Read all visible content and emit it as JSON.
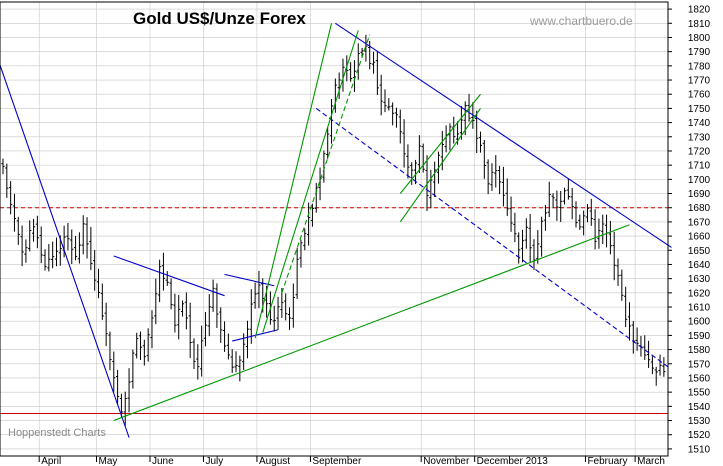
{
  "chart_data": {
    "type": "ohlc",
    "title": "Gold US$/Unze Forex",
    "watermark": "www.chartbuero.de",
    "source": "Hoppenstedt Charts",
    "y_axis": {
      "min": 1505,
      "max": 1825,
      "position": "right",
      "tick_step": 10
    },
    "y_ticks": [
      "1510",
      "1520",
      "1530",
      "1540",
      "1550",
      "1560",
      "1570",
      "1580",
      "1590",
      "1600",
      "1610",
      "1620",
      "1630",
      "1640",
      "1650",
      "1660",
      "1670",
      "1680",
      "1690",
      "1700",
      "1710",
      "1720",
      "1730",
      "1740",
      "1750",
      "1760",
      "1770",
      "1780",
      "1790",
      "1800",
      "1810",
      "1820"
    ],
    "x_ticks": [
      "April",
      "May",
      "June",
      "July",
      "August",
      "September",
      "November",
      "December 2013",
      "February",
      "March"
    ],
    "grid": true,
    "colors": {
      "bars": "#000000",
      "down_trend": "#0000cc",
      "up_trend": "#009900",
      "resistance": "#cc0000",
      "support": "#cc0000",
      "grid": "#c8c8c8"
    },
    "horizontal_lines": [
      {
        "value": 1680,
        "style": "dashed",
        "color": "#cc0000"
      },
      {
        "value": 1535,
        "style": "solid",
        "color": "#cc0000"
      }
    ],
    "anchors": [
      {
        "i": 0,
        "p": 1710
      },
      {
        "i": 2,
        "p": 1680
      },
      {
        "i": 5,
        "p": 1650
      },
      {
        "i": 8,
        "p": 1665
      },
      {
        "i": 11,
        "p": 1640
      },
      {
        "i": 14,
        "p": 1650
      },
      {
        "i": 17,
        "p": 1660
      },
      {
        "i": 19,
        "p": 1645
      },
      {
        "i": 21,
        "p": 1670
      },
      {
        "i": 24,
        "p": 1630
      },
      {
        "i": 27,
        "p": 1590
      },
      {
        "i": 29,
        "p": 1560
      },
      {
        "i": 31,
        "p": 1535
      },
      {
        "i": 33,
        "p": 1560
      },
      {
        "i": 35,
        "p": 1590
      },
      {
        "i": 37,
        "p": 1575
      },
      {
        "i": 39,
        "p": 1600
      },
      {
        "i": 41,
        "p": 1635
      },
      {
        "i": 43,
        "p": 1630
      },
      {
        "i": 45,
        "p": 1595
      },
      {
        "i": 47,
        "p": 1615
      },
      {
        "i": 49,
        "p": 1585
      },
      {
        "i": 51,
        "p": 1565
      },
      {
        "i": 53,
        "p": 1600
      },
      {
        "i": 55,
        "p": 1625
      },
      {
        "i": 57,
        "p": 1590
      },
      {
        "i": 59,
        "p": 1575
      },
      {
        "i": 61,
        "p": 1565
      },
      {
        "i": 63,
        "p": 1580
      },
      {
        "i": 65,
        "p": 1610
      },
      {
        "i": 67,
        "p": 1625
      },
      {
        "i": 69,
        "p": 1610
      },
      {
        "i": 71,
        "p": 1600
      },
      {
        "i": 73,
        "p": 1615
      },
      {
        "i": 75,
        "p": 1600
      },
      {
        "i": 77,
        "p": 1640
      },
      {
        "i": 79,
        "p": 1665
      },
      {
        "i": 81,
        "p": 1680
      },
      {
        "i": 83,
        "p": 1700
      },
      {
        "i": 85,
        "p": 1735
      },
      {
        "i": 87,
        "p": 1765
      },
      {
        "i": 89,
        "p": 1780
      },
      {
        "i": 91,
        "p": 1770
      },
      {
        "i": 93,
        "p": 1785
      },
      {
        "i": 95,
        "p": 1790
      },
      {
        "i": 97,
        "p": 1780
      },
      {
        "i": 99,
        "p": 1755
      },
      {
        "i": 101,
        "p": 1750
      },
      {
        "i": 103,
        "p": 1745
      },
      {
        "i": 105,
        "p": 1720
      },
      {
        "i": 107,
        "p": 1705
      },
      {
        "i": 109,
        "p": 1720
      },
      {
        "i": 111,
        "p": 1690
      },
      {
        "i": 113,
        "p": 1710
      },
      {
        "i": 115,
        "p": 1725
      },
      {
        "i": 117,
        "p": 1735
      },
      {
        "i": 119,
        "p": 1730
      },
      {
        "i": 121,
        "p": 1750
      },
      {
        "i": 123,
        "p": 1740
      },
      {
        "i": 125,
        "p": 1720
      },
      {
        "i": 127,
        "p": 1700
      },
      {
        "i": 129,
        "p": 1710
      },
      {
        "i": 131,
        "p": 1690
      },
      {
        "i": 133,
        "p": 1670
      },
      {
        "i": 135,
        "p": 1650
      },
      {
        "i": 137,
        "p": 1665
      },
      {
        "i": 139,
        "p": 1645
      },
      {
        "i": 141,
        "p": 1670
      },
      {
        "i": 143,
        "p": 1690
      },
      {
        "i": 145,
        "p": 1680
      },
      {
        "i": 147,
        "p": 1690
      },
      {
        "i": 149,
        "p": 1680
      },
      {
        "i": 151,
        "p": 1665
      },
      {
        "i": 153,
        "p": 1680
      },
      {
        "i": 155,
        "p": 1660
      },
      {
        "i": 157,
        "p": 1670
      },
      {
        "i": 159,
        "p": 1650
      },
      {
        "i": 161,
        "p": 1630
      },
      {
        "i": 163,
        "p": 1600
      },
      {
        "i": 165,
        "p": 1590
      },
      {
        "i": 167,
        "p": 1580
      },
      {
        "i": 169,
        "p": 1575
      },
      {
        "i": 171,
        "p": 1565
      }
    ],
    "trendlines": [
      {
        "color": "#0000cc",
        "style": "solid",
        "from": [
          -2,
          1790
        ],
        "to": [
          33,
          1518
        ]
      },
      {
        "color": "#0000cc",
        "style": "solid",
        "from": [
          29,
          1646
        ],
        "to": [
          58,
          1618
        ]
      },
      {
        "color": "#0000cc",
        "style": "solid",
        "from": [
          58,
          1633
        ],
        "to": [
          71,
          1625
        ]
      },
      {
        "color": "#0000cc",
        "style": "solid",
        "from": [
          60,
          1586
        ],
        "to": [
          72,
          1594
        ]
      },
      {
        "color": "#0000cc",
        "style": "solid",
        "from": [
          87,
          1810
        ],
        "to": [
          175,
          1652
        ]
      },
      {
        "color": "#0000cc",
        "style": "dashed",
        "from": [
          82,
          1750
        ],
        "to": [
          174,
          1568
        ]
      },
      {
        "color": "#009900",
        "style": "solid",
        "from": [
          29,
          1530
        ],
        "to": [
          164,
          1668
        ]
      },
      {
        "color": "#009900",
        "style": "solid",
        "from": [
          66,
          1588
        ],
        "to": [
          86,
          1810
        ]
      },
      {
        "color": "#009900",
        "style": "solid",
        "from": [
          68,
          1592
        ],
        "to": [
          93,
          1805
        ]
      },
      {
        "color": "#009900",
        "style": "dashed",
        "from": [
          73,
          1620
        ],
        "to": [
          96,
          1802
        ]
      },
      {
        "color": "#009900",
        "style": "solid",
        "from": [
          104,
          1690
        ],
        "to": [
          125,
          1760
        ]
      },
      {
        "color": "#009900",
        "style": "solid",
        "from": [
          104,
          1670
        ],
        "to": [
          125,
          1750
        ]
      }
    ]
  }
}
